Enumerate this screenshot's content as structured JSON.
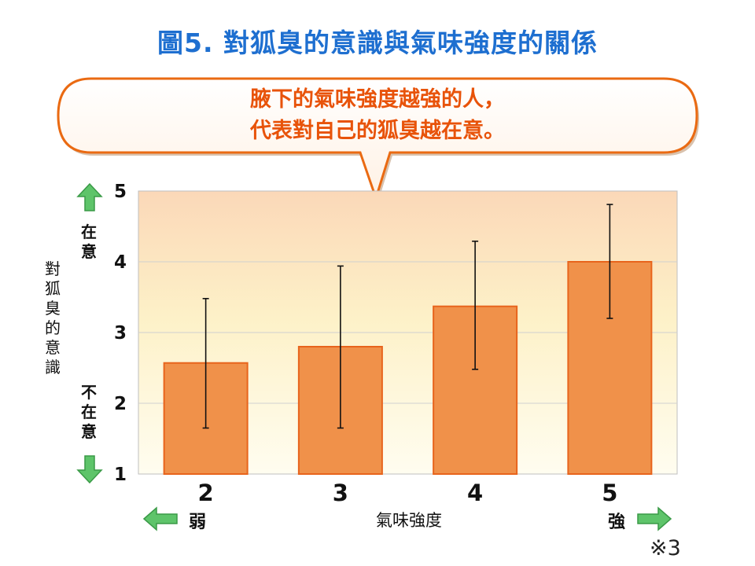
{
  "title": "圖5. 對狐臭的意識與氣味強度的關係",
  "callout": {
    "line1": "腋下的氣味強度越強的人，",
    "line2": "代表對自己的狐臭越在意。"
  },
  "labels": {
    "y_top": "在意",
    "y_bottom": "不在意",
    "y_title": "對狐臭的意識",
    "x_title": "氣味強度",
    "x_weak": "弱",
    "x_strong": "強",
    "note": "※3"
  },
  "colors": {
    "title": "#1e6fd0",
    "callout_text": "#e8530a",
    "bar_fill": "#f0914a",
    "bar_stroke": "#e8641c",
    "arrow_green": "#5ec46a"
  },
  "chart_data": {
    "type": "bar",
    "categories": [
      "2",
      "3",
      "4",
      "5"
    ],
    "values": [
      2.57,
      2.8,
      3.37,
      4.0
    ],
    "error_low": [
      1.65,
      1.65,
      2.48,
      3.2
    ],
    "error_high": [
      3.48,
      3.94,
      4.29,
      4.81
    ],
    "ylim": [
      1,
      5
    ],
    "yticks": [
      "1",
      "2",
      "3",
      "4",
      "5"
    ],
    "grid": true,
    "xlabel": "氣味強度",
    "ylabel": "對狐臭的意識"
  }
}
